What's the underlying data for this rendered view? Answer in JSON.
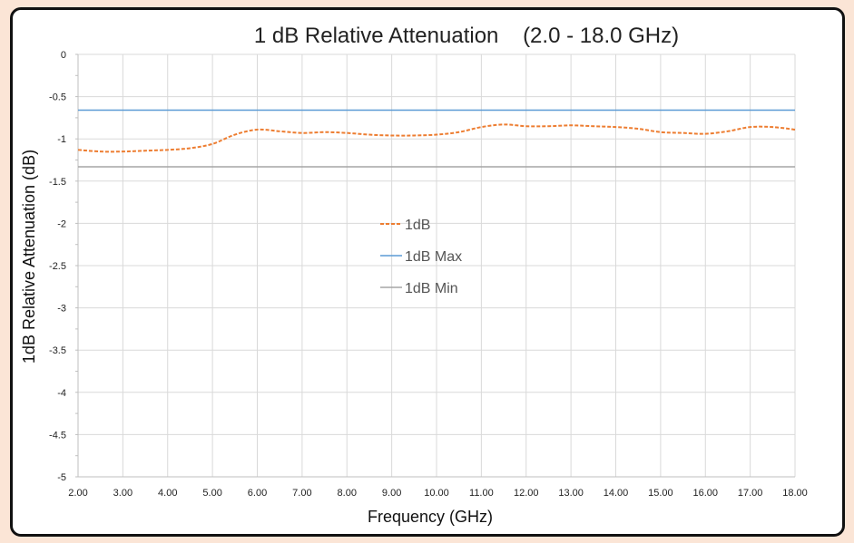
{
  "chart_data": {
    "type": "line",
    "title": "1 dB Relative Attenuation    (2.0 - 18.0 GHz)",
    "xlabel": "Frequency (GHz)",
    "ylabel": "1dB Relative Attenuation (dB)",
    "xlim": [
      2.0,
      18.0
    ],
    "ylim": [
      -5,
      0
    ],
    "xticks": [
      "2.00",
      "3.00",
      "4.00",
      "5.00",
      "6.00",
      "7.00",
      "8.00",
      "9.00",
      "10.00",
      "11.00",
      "12.00",
      "13.00",
      "14.00",
      "15.00",
      "16.00",
      "17.00",
      "18.00"
    ],
    "yticks": [
      "0",
      "-0.5",
      "-1",
      "-1.5",
      "-2",
      "-2.5",
      "-3",
      "-3.5",
      "-4",
      "-4.5",
      "-5"
    ],
    "grid": true,
    "legend_position": "center",
    "series": [
      {
        "name": "1dB",
        "color": "#ed7d31",
        "style": "dashed",
        "x": [
          2.0,
          2.5,
          3.0,
          3.5,
          4.0,
          4.5,
          5.0,
          5.5,
          6.0,
          6.5,
          7.0,
          7.5,
          8.0,
          8.5,
          9.0,
          9.5,
          10.0,
          10.5,
          11.0,
          11.5,
          12.0,
          12.5,
          13.0,
          13.5,
          14.0,
          14.5,
          15.0,
          15.5,
          16.0,
          16.5,
          17.0,
          17.5,
          18.0
        ],
        "y": [
          -1.13,
          -1.15,
          -1.15,
          -1.14,
          -1.13,
          -1.11,
          -1.06,
          -0.95,
          -0.89,
          -0.91,
          -0.93,
          -0.92,
          -0.93,
          -0.95,
          -0.96,
          -0.96,
          -0.95,
          -0.92,
          -0.86,
          -0.83,
          -0.85,
          -0.85,
          -0.84,
          -0.85,
          -0.86,
          -0.88,
          -0.92,
          -0.93,
          -0.94,
          -0.91,
          -0.86,
          -0.86,
          -0.89
        ]
      },
      {
        "name": "1dB Max",
        "color": "#5b9bd5",
        "style": "solid",
        "x": [
          2.0,
          18.0
        ],
        "y": [
          -0.66,
          -0.66
        ]
      },
      {
        "name": "1dB Min",
        "color": "#a5a5a5",
        "style": "solid",
        "x": [
          2.0,
          18.0
        ],
        "y": [
          -1.33,
          -1.33
        ]
      }
    ]
  }
}
